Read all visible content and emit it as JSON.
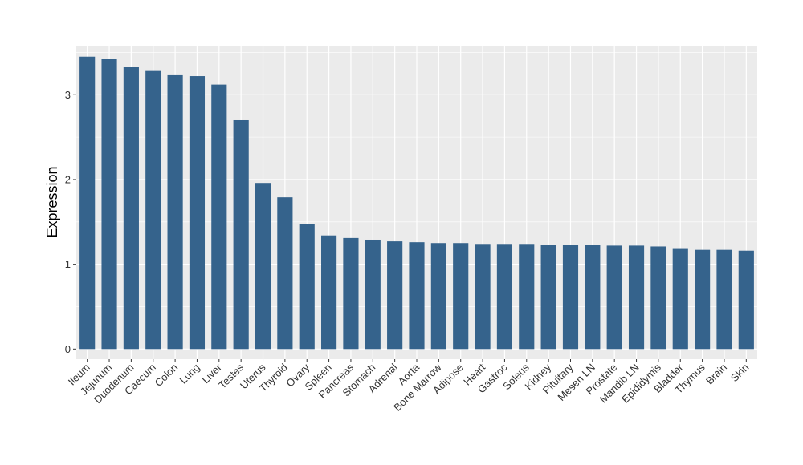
{
  "chart_data": {
    "type": "bar",
    "title": "",
    "xlabel": "",
    "ylabel": "Expression",
    "ylim": [
      -0.12,
      3.58
    ],
    "yticks": [
      0,
      1,
      2,
      3
    ],
    "grid": true,
    "bar_color": "#35638c",
    "panel_color": "#ebebeb",
    "categories": [
      "Ileum",
      "Jejunum",
      "Duodenum",
      "Caecum",
      "Colon",
      "Lung",
      "Liver",
      "Testes",
      "Uterus",
      "Thyroid",
      "Ovary",
      "Spleen",
      "Pancreas",
      "Stomach",
      "Adrenal",
      "Aorta",
      "Bone Marrow",
      "Adipose",
      "Heart",
      "Gastroc",
      "Soleus",
      "Kidney",
      "Pituitary",
      "Mesen LN",
      "Prostate",
      "Mandib LN",
      "Epididymis",
      "Bladder",
      "Thymus",
      "Brain",
      "Skin"
    ],
    "values": [
      3.45,
      3.42,
      3.33,
      3.29,
      3.24,
      3.22,
      3.12,
      2.7,
      1.96,
      1.79,
      1.47,
      1.34,
      1.31,
      1.29,
      1.27,
      1.26,
      1.25,
      1.25,
      1.24,
      1.24,
      1.24,
      1.23,
      1.23,
      1.23,
      1.22,
      1.22,
      1.21,
      1.19,
      1.17,
      1.17,
      1.16
    ]
  }
}
